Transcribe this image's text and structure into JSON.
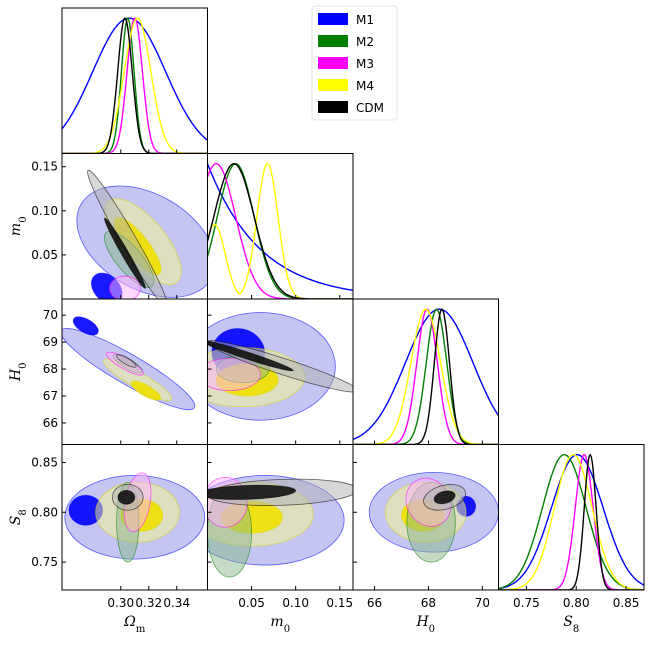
{
  "chart_data": {
    "type": "corner-plot",
    "description_free": true,
    "parameters": [
      {
        "key": "om",
        "label": "Ω",
        "sub": "m",
        "range": [
          0.258,
          0.362
        ],
        "ticks": [
          0.3,
          0.32,
          0.34
        ],
        "ticklabels": [
          "0.30",
          "0.32",
          "0.34"
        ]
      },
      {
        "key": "m0",
        "label": "m",
        "sub": "0",
        "range": [
          0.0,
          0.165
        ],
        "ticks": [
          0.05,
          0.1,
          0.15
        ],
        "ticklabels": [
          "0.05",
          "0.10",
          "0.15"
        ]
      },
      {
        "key": "h0",
        "label": "H",
        "sub": "0",
        "range": [
          65.2,
          70.6
        ],
        "ticks": [
          66,
          67,
          68,
          69,
          70
        ],
        "ticklabels": [
          "66",
          "67",
          "68",
          "69",
          "70"
        ],
        "xticks": [
          66,
          68,
          70
        ],
        "xticklabels": [
          "66",
          "68",
          "70"
        ]
      },
      {
        "key": "s8",
        "label": "S",
        "sub": "8",
        "range": [
          0.722,
          0.868
        ],
        "ticks": [
          0.75,
          0.8,
          0.85
        ],
        "ticklabels": [
          "0.75",
          "0.80",
          "0.85"
        ]
      }
    ],
    "legend": [
      {
        "name": "M1",
        "color": "#0000ff"
      },
      {
        "name": "M2",
        "color": "#008000"
      },
      {
        "name": "M3",
        "color": "#ff00ff"
      },
      {
        "name": "M4",
        "color": "#ffff00"
      },
      {
        "name": "CDM",
        "color": "#000000"
      }
    ],
    "marginals": {
      "om": [
        {
          "model": "M1",
          "mean": 0.306,
          "sd": 0.026
        },
        {
          "model": "M2",
          "mean": 0.305,
          "sd": 0.0045
        },
        {
          "model": "M3",
          "mean": 0.31,
          "sd": 0.0055
        },
        {
          "model": "M4",
          "mean": 0.312,
          "sd": 0.0095
        },
        {
          "model": "CDM",
          "mean": 0.303,
          "sd": 0.0052
        }
      ],
      "m0": [
        {
          "model": "M1",
          "type": "decay",
          "scale": 0.06
        },
        {
          "model": "M2",
          "mean": 0.032,
          "sd": 0.021
        },
        {
          "model": "M3",
          "mean": 0.01,
          "sd": 0.022
        },
        {
          "model": "M4",
          "mean": 0.068,
          "sd": 0.012,
          "secondary": {
            "mean": 0.008,
            "sd": 0.012,
            "weight": 0.55
          }
        },
        {
          "model": "CDM",
          "mean": 0.03,
          "sd": 0.023
        }
      ],
      "h0": [
        {
          "model": "M1",
          "mean": 68.4,
          "sd": 1.25
        },
        {
          "model": "M2",
          "mean": 68.3,
          "sd": 0.38
        },
        {
          "model": "M3",
          "mean": 67.95,
          "sd": 0.38
        },
        {
          "model": "M4",
          "mean": 67.9,
          "sd": 0.55
        },
        {
          "model": "CDM",
          "mean": 68.5,
          "sd": 0.28
        }
      ],
      "s8": [
        {
          "model": "M1",
          "mean": 0.801,
          "sd": 0.026
        },
        {
          "model": "M2",
          "mean": 0.788,
          "sd": 0.022
        },
        {
          "model": "M3",
          "mean": 0.808,
          "sd": 0.009
        },
        {
          "model": "M4",
          "mean": 0.797,
          "sd": 0.019
        },
        {
          "model": "CDM",
          "mean": 0.814,
          "sd": 0.006
        }
      ]
    },
    "contours": [
      {
        "x": "om",
        "y": "m0",
        "ellipses": [
          {
            "model": "M1",
            "cx": 0.318,
            "cy": 0.065,
            "rx": 0.034,
            "ry": 0.085,
            "rot": -60,
            "level": 2
          },
          {
            "model": "M1",
            "cx": 0.29,
            "cy": 0.012,
            "rx": 0.009,
            "ry": 0.02,
            "rot": -45,
            "level": 1
          },
          {
            "model": "M4",
            "cx": 0.316,
            "cy": 0.065,
            "rx": 0.016,
            "ry": 0.06,
            "rot": -40,
            "level": 2
          },
          {
            "model": "M4",
            "cx": 0.312,
            "cy": 0.06,
            "rx": 0.008,
            "ry": 0.04,
            "rot": -38,
            "level": 1
          },
          {
            "model": "M2",
            "cx": 0.306,
            "cy": 0.045,
            "rx": 0.009,
            "ry": 0.04,
            "rot": -40,
            "level": 2
          },
          {
            "model": "M3",
            "cx": 0.303,
            "cy": 0.012,
            "rx": 0.011,
            "ry": 0.014,
            "rot": 0,
            "level": 2
          },
          {
            "model": "CDM",
            "cx": 0.305,
            "cy": 0.068,
            "rx": 0.0055,
            "ry": 0.09,
            "rot": -30,
            "level": 2
          },
          {
            "model": "CDM",
            "cx": 0.303,
            "cy": 0.052,
            "rx": 0.0025,
            "ry": 0.046,
            "rot": -30,
            "level": 1
          }
        ]
      },
      {
        "x": "om",
        "y": "h0",
        "ellipses": [
          {
            "model": "M1",
            "cx": 0.305,
            "cy": 68.0,
            "rx": 0.055,
            "ry": 0.55,
            "rot": 30,
            "level": 2
          },
          {
            "model": "M1",
            "cx": 0.275,
            "cy": 69.6,
            "rx": 0.01,
            "ry": 0.25,
            "rot": 30,
            "level": 1
          },
          {
            "model": "M4",
            "cx": 0.312,
            "cy": 67.6,
            "rx": 0.028,
            "ry": 0.3,
            "rot": 30,
            "level": 2
          },
          {
            "model": "M4",
            "cx": 0.318,
            "cy": 67.2,
            "rx": 0.012,
            "ry": 0.2,
            "rot": 30,
            "level": 1
          },
          {
            "model": "M2",
            "cx": 0.305,
            "cy": 68.2,
            "rx": 0.012,
            "ry": 0.18,
            "rot": 30,
            "level": 2
          },
          {
            "model": "M3",
            "cx": 0.303,
            "cy": 68.2,
            "rx": 0.015,
            "ry": 0.2,
            "rot": 30,
            "level": 2
          },
          {
            "model": "CDM",
            "cx": 0.304,
            "cy": 68.3,
            "rx": 0.008,
            "ry": 0.12,
            "rot": 30,
            "level": 2
          }
        ]
      },
      {
        "x": "m0",
        "y": "h0",
        "ellipses": [
          {
            "model": "M1",
            "cx": 0.06,
            "cy": 68.1,
            "rx": 0.085,
            "ry": 2.0,
            "rot": 0,
            "level": 2
          },
          {
            "model": "M1",
            "cx": 0.035,
            "cy": 68.6,
            "rx": 0.03,
            "ry": 0.9,
            "rot": 10,
            "level": 1
          },
          {
            "model": "M4",
            "cx": 0.04,
            "cy": 67.7,
            "rx": 0.07,
            "ry": 1.1,
            "rot": 0,
            "level": 2
          },
          {
            "model": "M4",
            "cx": 0.045,
            "cy": 67.6,
            "rx": 0.035,
            "ry": 0.6,
            "rot": 0,
            "level": 1
          },
          {
            "model": "M2",
            "cx": 0.04,
            "cy": 68.0,
            "rx": 0.03,
            "ry": 0.5,
            "rot": 0,
            "level": 2
          },
          {
            "model": "M3",
            "cx": 0.025,
            "cy": 67.8,
            "rx": 0.035,
            "ry": 0.6,
            "rot": 0,
            "level": 2
          },
          {
            "model": "CDM",
            "cx": 0.085,
            "cy": 68.1,
            "rx": 0.09,
            "ry": 0.3,
            "rot": 18,
            "level": 2
          },
          {
            "model": "CDM",
            "cx": 0.045,
            "cy": 68.5,
            "rx": 0.055,
            "ry": 0.13,
            "rot": 18,
            "level": 1
          }
        ]
      },
      {
        "x": "om",
        "y": "s8",
        "ellipses": [
          {
            "model": "M1",
            "cx": 0.31,
            "cy": 0.795,
            "rx": 0.05,
            "ry": 0.042,
            "rot": 0,
            "level": 2
          },
          {
            "model": "M1",
            "cx": 0.275,
            "cy": 0.802,
            "rx": 0.012,
            "ry": 0.015,
            "rot": 0,
            "level": 1
          },
          {
            "model": "M4",
            "cx": 0.312,
            "cy": 0.8,
            "rx": 0.03,
            "ry": 0.03,
            "rot": 0,
            "level": 2
          },
          {
            "model": "M4",
            "cx": 0.315,
            "cy": 0.797,
            "rx": 0.015,
            "ry": 0.016,
            "rot": 0,
            "level": 1
          },
          {
            "model": "M2",
            "cx": 0.305,
            "cy": 0.79,
            "rx": 0.008,
            "ry": 0.04,
            "rot": 0,
            "level": 2
          },
          {
            "model": "M3",
            "cx": 0.312,
            "cy": 0.81,
            "rx": 0.009,
            "ry": 0.03,
            "rot": 10,
            "level": 2
          },
          {
            "model": "CDM",
            "cx": 0.305,
            "cy": 0.815,
            "rx": 0.011,
            "ry": 0.013,
            "rot": 0,
            "level": 2
          },
          {
            "model": "CDM",
            "cx": 0.304,
            "cy": 0.815,
            "rx": 0.006,
            "ry": 0.007,
            "rot": 0,
            "level": 1
          }
        ]
      },
      {
        "x": "m0",
        "y": "s8",
        "ellipses": [
          {
            "model": "M1",
            "cx": 0.065,
            "cy": 0.792,
            "rx": 0.09,
            "ry": 0.045,
            "rot": 0,
            "level": 2
          },
          {
            "model": "M4",
            "cx": 0.05,
            "cy": 0.798,
            "rx": 0.07,
            "ry": 0.032,
            "rot": 0,
            "level": 2
          },
          {
            "model": "M4",
            "cx": 0.05,
            "cy": 0.795,
            "rx": 0.035,
            "ry": 0.016,
            "rot": 0,
            "level": 1
          },
          {
            "model": "M2",
            "cx": 0.025,
            "cy": 0.78,
            "rx": 0.025,
            "ry": 0.045,
            "rot": 0,
            "level": 2
          },
          {
            "model": "M3",
            "cx": 0.02,
            "cy": 0.81,
            "rx": 0.025,
            "ry": 0.025,
            "rot": 0,
            "level": 2
          },
          {
            "model": "CDM",
            "cx": 0.085,
            "cy": 0.82,
            "rx": 0.085,
            "ry": 0.013,
            "rot": -2,
            "level": 2
          },
          {
            "model": "CDM",
            "cx": 0.045,
            "cy": 0.82,
            "rx": 0.055,
            "ry": 0.007,
            "rot": -2,
            "level": 1
          }
        ]
      },
      {
        "x": "h0",
        "y": "s8",
        "ellipses": [
          {
            "model": "M1",
            "cx": 68.2,
            "cy": 0.8,
            "rx": 2.4,
            "ry": 0.04,
            "rot": 0,
            "level": 2
          },
          {
            "model": "M1",
            "cx": 69.4,
            "cy": 0.806,
            "rx": 0.35,
            "ry": 0.01,
            "rot": 0,
            "level": 1
          },
          {
            "model": "M4",
            "cx": 67.9,
            "cy": 0.8,
            "rx": 1.5,
            "ry": 0.03,
            "rot": 0,
            "level": 2
          },
          {
            "model": "M4",
            "cx": 67.8,
            "cy": 0.797,
            "rx": 0.8,
            "ry": 0.016,
            "rot": 0,
            "level": 1
          },
          {
            "model": "M2",
            "cx": 68.1,
            "cy": 0.79,
            "rx": 0.9,
            "ry": 0.04,
            "rot": 0,
            "level": 2
          },
          {
            "model": "M3",
            "cx": 68.0,
            "cy": 0.81,
            "rx": 0.8,
            "ry": 0.025,
            "rot": -30,
            "level": 2
          },
          {
            "model": "CDM",
            "cx": 68.6,
            "cy": 0.815,
            "rx": 0.8,
            "ry": 0.012,
            "rot": -15,
            "level": 2
          },
          {
            "model": "CDM",
            "cx": 68.6,
            "cy": 0.815,
            "rx": 0.4,
            "ry": 0.006,
            "rot": -15,
            "level": 1
          }
        ]
      }
    ]
  }
}
